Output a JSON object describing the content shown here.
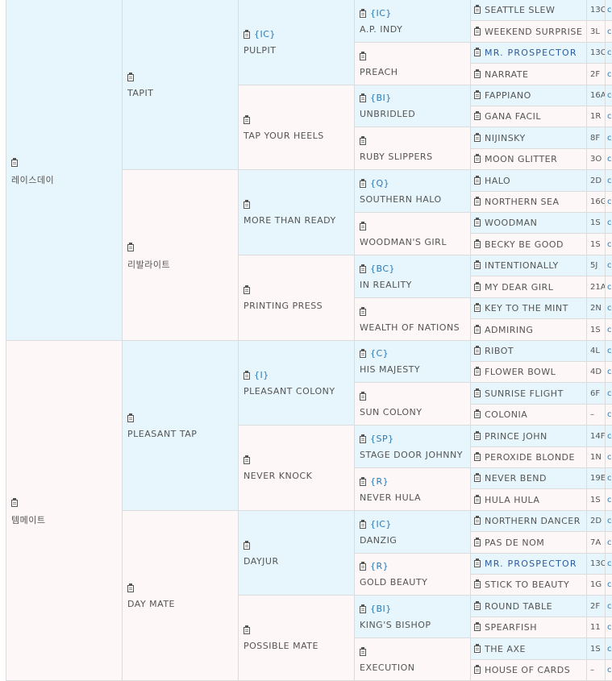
{
  "gen1": [
    {
      "name": "레이스데이",
      "code": ""
    },
    {
      "name": "템메이트",
      "code": ""
    }
  ],
  "gen2": [
    {
      "name": "TAPIT",
      "code": ""
    },
    {
      "name": "리발라이트",
      "code": ""
    },
    {
      "name": "PLEASANT TAP",
      "code": ""
    },
    {
      "name": "DAY MATE",
      "code": ""
    }
  ],
  "gen3": [
    {
      "name": "PULPIT",
      "code": "{IC}"
    },
    {
      "name": "TAP YOUR HEELS",
      "code": ""
    },
    {
      "name": "MORE THAN READY",
      "code": ""
    },
    {
      "name": "PRINTING PRESS",
      "code": ""
    },
    {
      "name": "PLEASANT COLONY",
      "code": "{I}"
    },
    {
      "name": "NEVER KNOCK",
      "code": ""
    },
    {
      "name": "DAYJUR",
      "code": ""
    },
    {
      "name": "POSSIBLE MATE",
      "code": ""
    }
  ],
  "gen4": [
    {
      "name": "A.P. INDY",
      "code": "{IC}"
    },
    {
      "name": "PREACH",
      "code": ""
    },
    {
      "name": "UNBRIDLED",
      "code": "{BI}"
    },
    {
      "name": "RUBY SLIPPERS",
      "code": ""
    },
    {
      "name": "SOUTHERN HALO",
      "code": "{Q}"
    },
    {
      "name": "WOODMAN'S GIRL",
      "code": ""
    },
    {
      "name": "IN REALITY",
      "code": "{BC}"
    },
    {
      "name": "WEALTH OF NATIONS",
      "code": ""
    },
    {
      "name": "HIS MAJESTY",
      "code": "{C}"
    },
    {
      "name": "SUN COLONY",
      "code": ""
    },
    {
      "name": "STAGE DOOR JOHNNY",
      "code": "{SP}"
    },
    {
      "name": "NEVER HULA",
      "code": "{R}"
    },
    {
      "name": "DANZIG",
      "code": "{IC}"
    },
    {
      "name": "GOLD BEAUTY",
      "code": "{R}"
    },
    {
      "name": "KING'S BISHOP",
      "code": "{BI}"
    },
    {
      "name": "EXECUTION",
      "code": ""
    }
  ],
  "gen5": [
    {
      "name": "SEATTLE SLEW",
      "family": "13C",
      "link": false
    },
    {
      "name": "WEEKEND SURPRISE",
      "family": "3L",
      "link": false
    },
    {
      "name": "MR. PROSPECTOR",
      "family": "13C",
      "link": true
    },
    {
      "name": "NARRATE",
      "family": "2F",
      "link": false
    },
    {
      "name": "FAPPIANO",
      "family": "16A",
      "link": false
    },
    {
      "name": "GANA FACIL",
      "family": "1R",
      "link": false
    },
    {
      "name": "NIJINSKY",
      "family": "8F",
      "link": false
    },
    {
      "name": "MOON GLITTER",
      "family": "3O",
      "link": false
    },
    {
      "name": "HALO",
      "family": "2D",
      "link": false
    },
    {
      "name": "NORTHERN SEA",
      "family": "16G",
      "link": false
    },
    {
      "name": "WOODMAN",
      "family": "1S",
      "link": false
    },
    {
      "name": "BECKY BE GOOD",
      "family": "1S",
      "link": false
    },
    {
      "name": "INTENTIONALLY",
      "family": "5J",
      "link": false
    },
    {
      "name": "MY DEAR GIRL",
      "family": "21A",
      "link": false
    },
    {
      "name": "KEY TO THE MINT",
      "family": "2N",
      "link": false
    },
    {
      "name": "ADMIRING",
      "family": "1S",
      "link": false
    },
    {
      "name": "RIBOT",
      "family": "4L",
      "link": false
    },
    {
      "name": "FLOWER BOWL",
      "family": "4D",
      "link": false
    },
    {
      "name": "SUNRISE FLIGHT",
      "family": "6F",
      "link": false
    },
    {
      "name": "COLONIA",
      "family": "–",
      "link": false
    },
    {
      "name": "PRINCE JOHN",
      "family": "14F",
      "link": false
    },
    {
      "name": "PEROXIDE BLONDE",
      "family": "1N",
      "link": false
    },
    {
      "name": "NEVER BEND",
      "family": "19E",
      "link": false
    },
    {
      "name": "HULA HULA",
      "family": "1S",
      "link": false
    },
    {
      "name": "NORTHERN DANCER",
      "family": "2D",
      "link": false
    },
    {
      "name": "PAS DE NOM",
      "family": "7A",
      "link": false
    },
    {
      "name": "MR. PROSPECTOR",
      "family": "13C",
      "link": true
    },
    {
      "name": "STICK TO BEAUTY",
      "family": "1G",
      "link": false
    },
    {
      "name": "ROUND TABLE",
      "family": "2F",
      "link": false
    },
    {
      "name": "SPEARFISH",
      "family": "11",
      "link": false
    },
    {
      "name": "THE AXE",
      "family": "1S",
      "link": false
    },
    {
      "name": "HOUSE OF CARDS",
      "family": "–",
      "link": false
    }
  ],
  "gen6_marker": "c",
  "colors": {
    "sire_bg": "#e6f6fc",
    "dam_bg": "#fdf7f7",
    "code": "#2a7ab8",
    "link": "#2a5aa0"
  }
}
